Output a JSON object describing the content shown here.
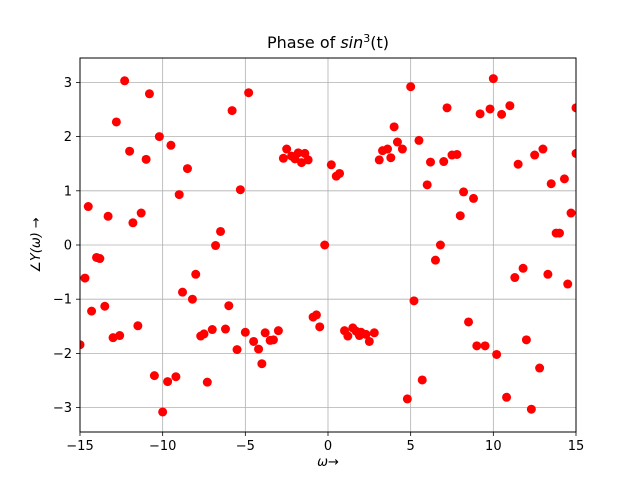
{
  "chart_data": {
    "type": "scatter",
    "title": {
      "prefix": "Phase of ",
      "math": "sin",
      "superscript": "3",
      "suffix": "(t)"
    },
    "xlabel": "ω→",
    "ylabel": "∠Y(ω) →",
    "xlim": [
      -15,
      15
    ],
    "ylim": [
      -3.45,
      3.45
    ],
    "xticks": [
      -15,
      -10,
      -5,
      0,
      5,
      10,
      15
    ],
    "yticks": [
      -3,
      -2,
      -1,
      0,
      1,
      2,
      3
    ],
    "grid": true,
    "marker_color": "#ff0000",
    "points": [
      [
        -15.0,
        -1.84
      ],
      [
        -14.7,
        -0.61
      ],
      [
        -14.5,
        0.71
      ],
      [
        -14.3,
        -1.22
      ],
      [
        -14.0,
        -0.23
      ],
      [
        -13.8,
        -0.25
      ],
      [
        -13.5,
        -1.13
      ],
      [
        -13.3,
        0.53
      ],
      [
        -13.0,
        -1.71
      ],
      [
        -12.8,
        2.27
      ],
      [
        -12.6,
        -1.67
      ],
      [
        -12.3,
        3.03
      ],
      [
        -12.0,
        1.73
      ],
      [
        -11.8,
        0.41
      ],
      [
        -11.5,
        -1.49
      ],
      [
        -11.3,
        0.59
      ],
      [
        -11.0,
        1.58
      ],
      [
        -10.8,
        2.79
      ],
      [
        -10.5,
        -2.41
      ],
      [
        -10.2,
        2.0
      ],
      [
        -10.0,
        -3.08
      ],
      [
        -9.7,
        -2.52
      ],
      [
        -9.5,
        1.84
      ],
      [
        -9.2,
        -2.43
      ],
      [
        -9.0,
        0.93
      ],
      [
        -8.8,
        -0.87
      ],
      [
        -8.5,
        1.41
      ],
      [
        -8.2,
        -1.0
      ],
      [
        -8.0,
        -0.54
      ],
      [
        -7.7,
        -1.68
      ],
      [
        -7.5,
        -1.64
      ],
      [
        -7.3,
        -2.53
      ],
      [
        -7.0,
        -1.56
      ],
      [
        -6.8,
        -0.01
      ],
      [
        -6.5,
        0.25
      ],
      [
        -6.2,
        -1.55
      ],
      [
        -6.0,
        -1.12
      ],
      [
        -5.8,
        2.48
      ],
      [
        -5.5,
        -1.93
      ],
      [
        -5.3,
        1.02
      ],
      [
        -5.0,
        -1.61
      ],
      [
        -4.8,
        2.81
      ],
      [
        -4.5,
        -1.78
      ],
      [
        -4.2,
        -1.92
      ],
      [
        -4.0,
        -2.19
      ],
      [
        -3.8,
        -1.62
      ],
      [
        -3.5,
        -1.76
      ],
      [
        -3.3,
        -1.75
      ],
      [
        -3.0,
        -1.58
      ],
      [
        -2.7,
        1.6
      ],
      [
        -2.5,
        1.77
      ],
      [
        -2.2,
        1.64
      ],
      [
        -2.0,
        1.59
      ],
      [
        -1.8,
        1.7
      ],
      [
        -1.6,
        1.52
      ],
      [
        -1.4,
        1.69
      ],
      [
        -1.2,
        1.57
      ],
      [
        -0.9,
        -1.33
      ],
      [
        -0.7,
        -1.29
      ],
      [
        -0.5,
        -1.51
      ],
      [
        -0.2,
        0.0
      ],
      [
        0.2,
        1.48
      ],
      [
        0.5,
        1.27
      ],
      [
        0.7,
        1.32
      ],
      [
        1.0,
        -1.58
      ],
      [
        1.2,
        -1.68
      ],
      [
        1.5,
        -1.53
      ],
      [
        1.7,
        -1.59
      ],
      [
        1.9,
        -1.67
      ],
      [
        2.0,
        -1.61
      ],
      [
        2.3,
        -1.65
      ],
      [
        2.5,
        -1.78
      ],
      [
        2.8,
        -1.62
      ],
      [
        3.1,
        1.57
      ],
      [
        3.3,
        1.74
      ],
      [
        3.6,
        1.77
      ],
      [
        3.8,
        1.61
      ],
      [
        4.0,
        2.18
      ],
      [
        4.2,
        1.9
      ],
      [
        4.5,
        1.77
      ],
      [
        4.8,
        -2.84
      ],
      [
        5.0,
        2.92
      ],
      [
        5.2,
        -1.03
      ],
      [
        5.5,
        1.93
      ],
      [
        5.7,
        -2.49
      ],
      [
        6.0,
        1.11
      ],
      [
        6.2,
        1.53
      ],
      [
        6.5,
        -0.28
      ],
      [
        6.8,
        0.0
      ],
      [
        7.0,
        1.54
      ],
      [
        7.2,
        2.53
      ],
      [
        7.5,
        1.66
      ],
      [
        7.8,
        1.67
      ],
      [
        8.0,
        0.54
      ],
      [
        8.2,
        0.98
      ],
      [
        8.5,
        -1.42
      ],
      [
        8.8,
        0.86
      ],
      [
        9.0,
        -1.86
      ],
      [
        9.2,
        2.42
      ],
      [
        9.5,
        -1.86
      ],
      [
        9.8,
        2.51
      ],
      [
        10.0,
        3.07
      ],
      [
        10.2,
        -2.02
      ],
      [
        10.5,
        2.41
      ],
      [
        10.8,
        -2.81
      ],
      [
        11.0,
        2.57
      ],
      [
        11.3,
        -0.6
      ],
      [
        11.5,
        1.49
      ],
      [
        11.8,
        -0.43
      ],
      [
        12.0,
        -1.75
      ],
      [
        12.3,
        -3.03
      ],
      [
        12.5,
        1.66
      ],
      [
        12.8,
        -2.27
      ],
      [
        13.0,
        1.77
      ],
      [
        13.3,
        -0.54
      ],
      [
        13.5,
        1.13
      ],
      [
        13.8,
        0.22
      ],
      [
        14.0,
        0.22
      ],
      [
        14.3,
        1.22
      ],
      [
        14.5,
        -0.72
      ],
      [
        14.7,
        0.59
      ],
      [
        15.0,
        1.69
      ],
      [
        15.0,
        2.53
      ]
    ]
  }
}
